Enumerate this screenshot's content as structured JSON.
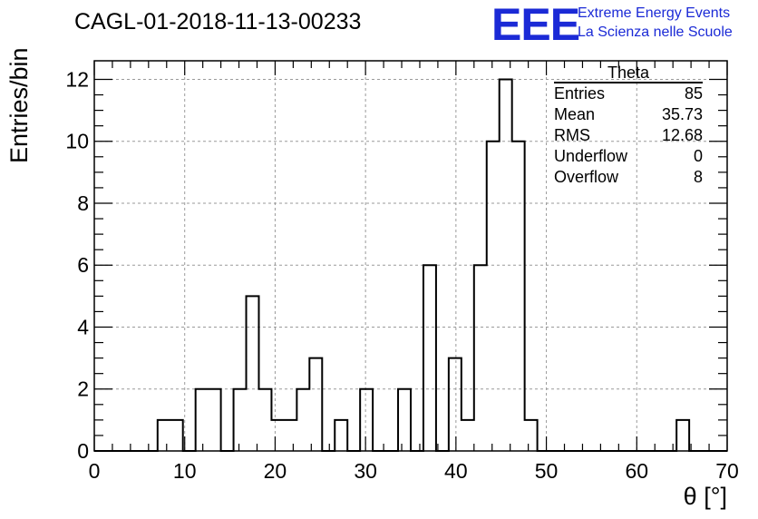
{
  "title": "CAGL-01-2018-11-13-00233",
  "logo": {
    "mark": "EEE",
    "line1": "Extreme Energy Events",
    "line2": "La Scienza nelle Scuole"
  },
  "stats": {
    "title": "Theta",
    "rows": [
      {
        "label": "Entries",
        "value": "85"
      },
      {
        "label": "Mean",
        "value": "35.73"
      },
      {
        "label": "RMS",
        "value": "12.68"
      },
      {
        "label": "Underflow",
        "value": "0"
      },
      {
        "label": "Overflow",
        "value": "8"
      }
    ]
  },
  "chart_data": {
    "type": "bar",
    "title": "CAGL-01-2018-11-13-00233",
    "xlabel": "θ [°]",
    "ylabel": "Entries/bin",
    "xlim": [
      0,
      70
    ],
    "ylim": [
      0,
      12.6
    ],
    "bin_width": 1.4,
    "bin_edges_start": 0,
    "values": [
      0,
      0,
      0,
      0,
      0,
      1,
      1,
      0,
      2,
      2,
      0,
      2,
      5,
      2,
      1,
      1,
      2,
      3,
      0,
      1,
      0,
      2,
      0,
      0,
      2,
      0,
      6,
      0,
      3,
      1,
      6,
      10,
      12,
      10,
      1,
      0,
      0,
      0,
      0,
      0,
      0,
      0,
      0,
      0,
      0,
      0,
      1,
      0,
      0,
      0
    ],
    "x_ticks": [
      "0",
      "10",
      "20",
      "30",
      "40",
      "50",
      "60",
      "70"
    ],
    "y_ticks": [
      "0",
      "2",
      "4",
      "6",
      "8",
      "10",
      "12"
    ],
    "grid": true,
    "legend": "none"
  }
}
